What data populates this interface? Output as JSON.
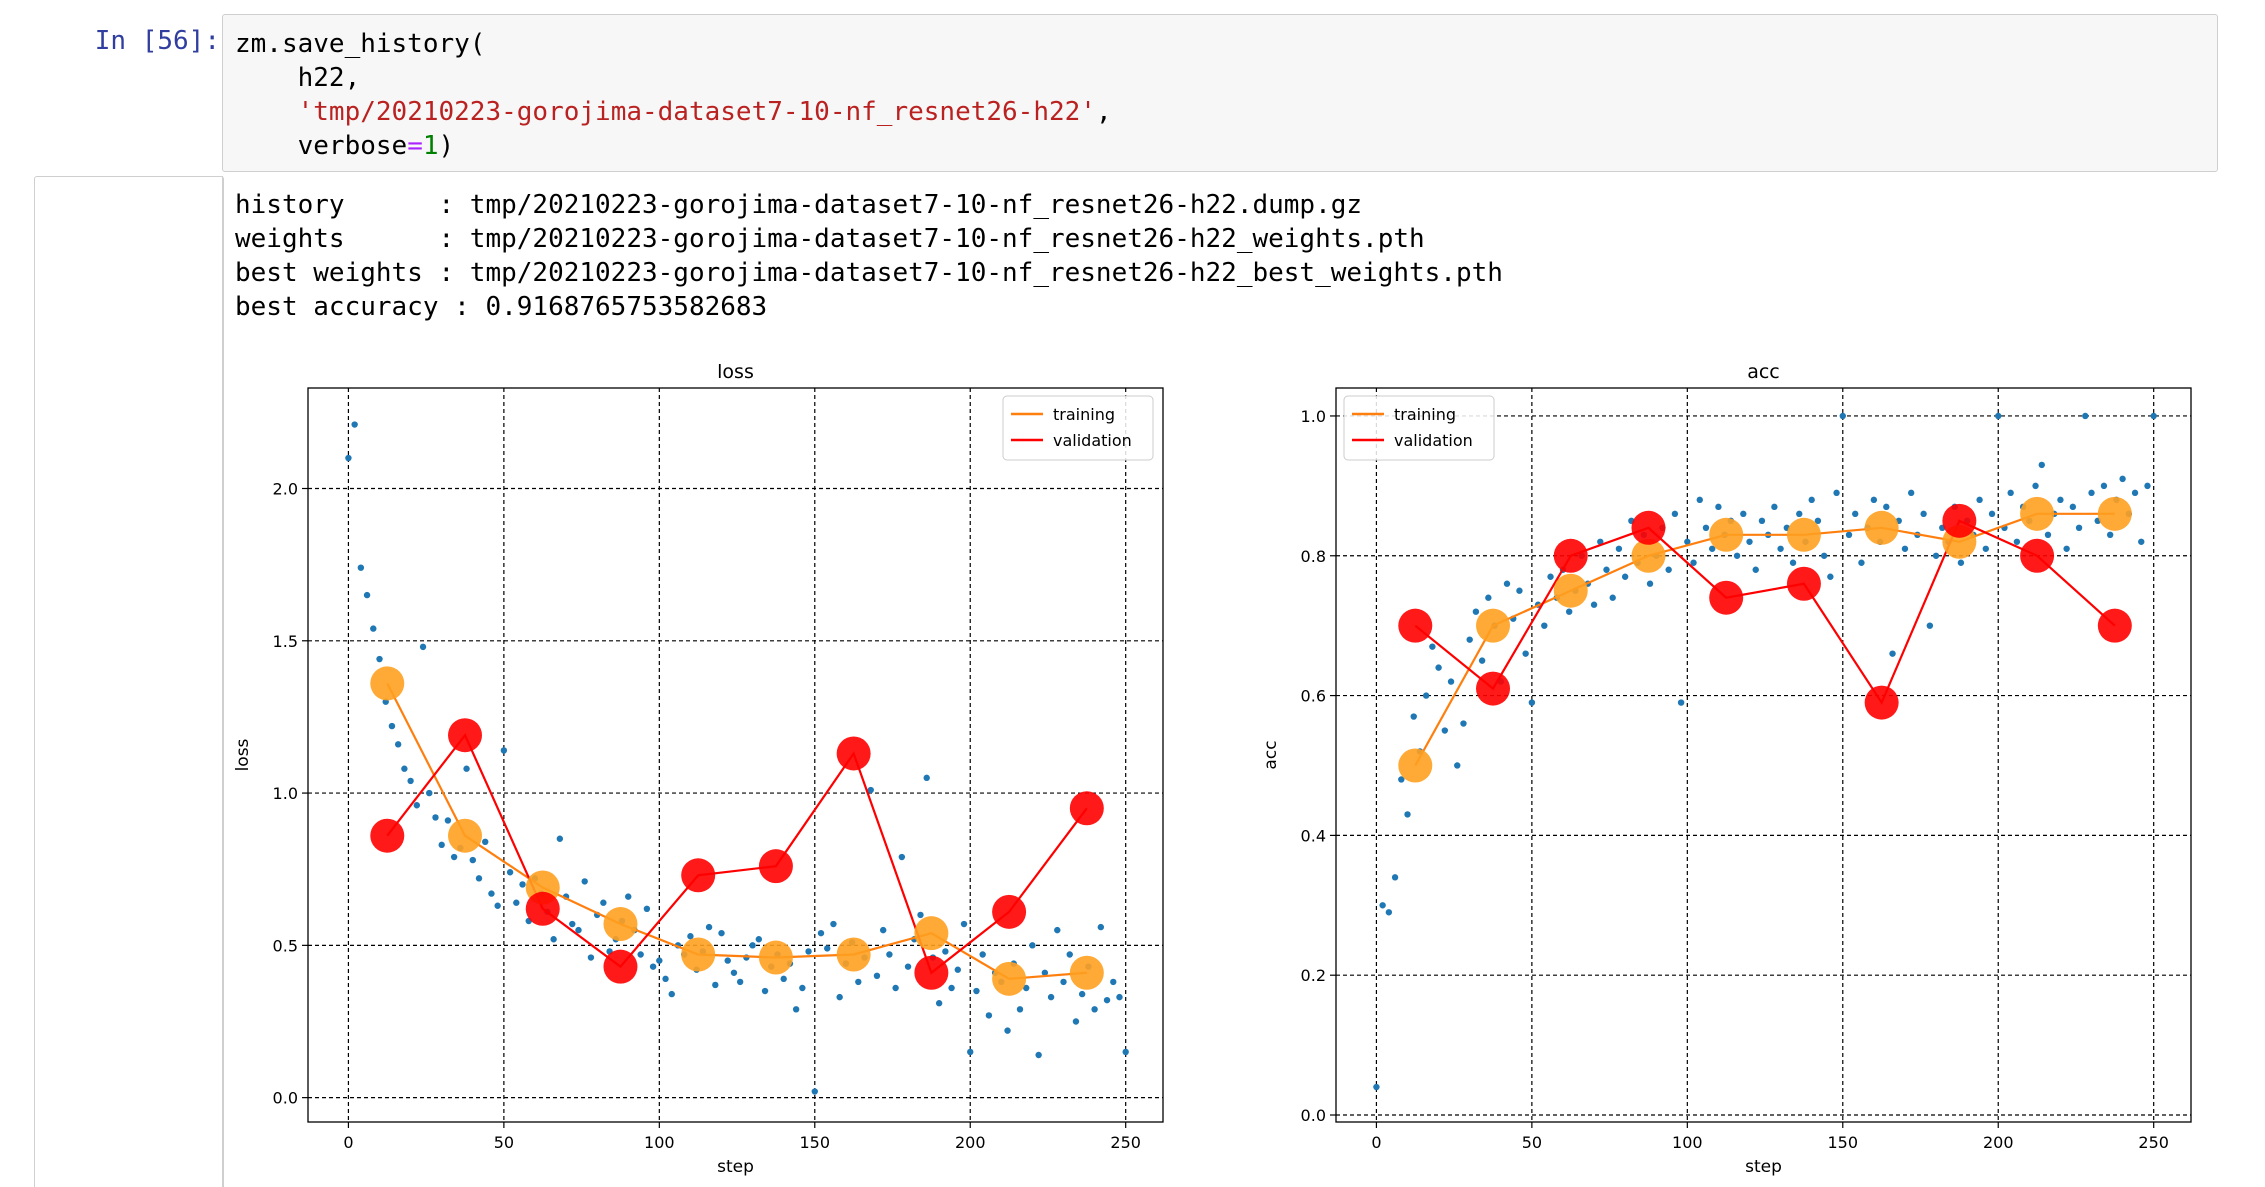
{
  "cell": {
    "prompt": "In [56]:",
    "code_lines": [
      {
        "pre": "zm.save_history(",
        "str": "",
        "op": "",
        "num": "",
        "post": ""
      },
      {
        "pre": "    h22,",
        "str": "",
        "op": "",
        "num": "",
        "post": ""
      },
      {
        "pre": "    ",
        "str": "'tmp/20210223-gorojima-dataset7-10-nf_resnet26-h22'",
        "op": "",
        "num": "",
        "post": ","
      },
      {
        "pre": "    verbose",
        "str": "",
        "op": "=",
        "num": "1",
        "post": ")"
      }
    ]
  },
  "output": {
    "lines": [
      "history      : tmp/20210223-gorojima-dataset7-10-nf_resnet26-h22.dump.gz",
      "weights      : tmp/20210223-gorojima-dataset7-10-nf_resnet26-h22_weights.pth",
      "best weights : tmp/20210223-gorojima-dataset7-10-nf_resnet26-h22_best_weights.pth",
      "best accuracy : 0.9168765753582683"
    ]
  },
  "colors": {
    "scatter": "#1f77b4",
    "training": "#ff7f0e",
    "training_marker": "#ffa020",
    "validation": "#ff0000",
    "grid": "#000000"
  },
  "chart_data": [
    {
      "type": "line",
      "title": "loss",
      "xlabel": "step",
      "ylabel": "loss",
      "xlim": [
        -13,
        262
      ],
      "ylim": [
        -0.08,
        2.33
      ],
      "xticks": [
        0,
        50,
        100,
        150,
        200,
        250
      ],
      "yticks": [
        0.0,
        0.5,
        1.0,
        1.5,
        2.0
      ],
      "ytick_format": 1,
      "legend_position": "upper right",
      "grid": true,
      "series": [
        {
          "name": "training",
          "x": [
            12.5,
            37.5,
            62.5,
            87.5,
            112.5,
            137.5,
            162.5,
            187.5,
            212.5,
            237.5
          ],
          "values": [
            1.36,
            0.86,
            0.69,
            0.57,
            0.47,
            0.46,
            0.47,
            0.54,
            0.39,
            0.41
          ]
        },
        {
          "name": "validation",
          "x": [
            12.5,
            37.5,
            62.5,
            87.5,
            112.5,
            137.5,
            162.5,
            187.5,
            212.5,
            237.5
          ],
          "values": [
            0.86,
            1.19,
            0.62,
            0.43,
            0.73,
            0.76,
            1.13,
            0.41,
            0.61,
            0.95
          ]
        }
      ],
      "batch_scatter": {
        "x": [
          0,
          2,
          4,
          6,
          8,
          10,
          12,
          14,
          16,
          18,
          20,
          22,
          24,
          26,
          28,
          30,
          32,
          34,
          36,
          38,
          40,
          42,
          44,
          46,
          48,
          50,
          52,
          54,
          56,
          58,
          60,
          62,
          64,
          66,
          68,
          70,
          72,
          74,
          76,
          78,
          80,
          82,
          84,
          86,
          88,
          90,
          92,
          94,
          96,
          98,
          100,
          102,
          104,
          106,
          108,
          110,
          112,
          114,
          116,
          118,
          120,
          122,
          124,
          126,
          128,
          130,
          132,
          134,
          136,
          138,
          140,
          142,
          144,
          146,
          148,
          150,
          152,
          154,
          156,
          158,
          160,
          162,
          164,
          166,
          168,
          170,
          172,
          174,
          176,
          178,
          180,
          182,
          184,
          186,
          188,
          190,
          192,
          194,
          196,
          198,
          200,
          202,
          204,
          206,
          208,
          210,
          212,
          214,
          216,
          218,
          220,
          222,
          224,
          226,
          228,
          230,
          232,
          234,
          236,
          238,
          240,
          242,
          244,
          246,
          248,
          250
        ],
        "y": [
          2.1,
          2.21,
          1.74,
          1.65,
          1.54,
          1.44,
          1.3,
          1.22,
          1.16,
          1.08,
          1.04,
          0.96,
          1.48,
          1.0,
          0.92,
          0.83,
          0.91,
          0.79,
          0.82,
          1.08,
          0.78,
          0.72,
          0.84,
          0.67,
          0.63,
          1.14,
          0.74,
          0.64,
          0.7,
          0.58,
          0.72,
          0.67,
          0.61,
          0.52,
          0.85,
          0.66,
          0.57,
          0.55,
          0.71,
          0.46,
          0.6,
          0.64,
          0.48,
          0.52,
          0.58,
          0.66,
          0.55,
          0.47,
          0.62,
          0.43,
          0.45,
          0.39,
          0.34,
          0.5,
          0.47,
          0.53,
          0.42,
          0.48,
          0.56,
          0.37,
          0.54,
          0.45,
          0.41,
          0.38,
          0.46,
          0.5,
          0.52,
          0.35,
          0.43,
          0.47,
          0.39,
          0.44,
          0.29,
          0.36,
          0.48,
          0.02,
          0.54,
          0.49,
          0.57,
          0.33,
          0.44,
          0.51,
          0.38,
          0.46,
          1.01,
          0.4,
          0.55,
          0.47,
          0.36,
          0.79,
          0.43,
          0.52,
          0.6,
          1.05,
          0.46,
          0.31,
          0.48,
          0.36,
          0.42,
          0.57,
          0.15,
          0.35,
          0.47,
          0.27,
          0.41,
          0.38,
          0.22,
          0.44,
          0.29,
          0.36,
          0.5,
          0.14,
          0.41,
          0.33,
          0.55,
          0.38,
          0.47,
          0.25,
          0.34,
          0.43,
          0.29,
          0.56,
          0.32,
          0.38,
          0.33,
          0.15
        ]
      }
    },
    {
      "type": "line",
      "title": "acc",
      "xlabel": "step",
      "ylabel": "acc",
      "xlim": [
        -13,
        262
      ],
      "ylim": [
        -0.01,
        1.04
      ],
      "xticks": [
        0,
        50,
        100,
        150,
        200,
        250
      ],
      "yticks": [
        0.0,
        0.2,
        0.4,
        0.6,
        0.8,
        1.0
      ],
      "ytick_format": 1,
      "legend_position": "upper left",
      "grid": true,
      "series": [
        {
          "name": "training",
          "x": [
            12.5,
            37.5,
            62.5,
            87.5,
            112.5,
            137.5,
            162.5,
            187.5,
            212.5,
            237.5
          ],
          "values": [
            0.5,
            0.7,
            0.75,
            0.8,
            0.83,
            0.83,
            0.84,
            0.82,
            0.86,
            0.86
          ]
        },
        {
          "name": "validation",
          "x": [
            12.5,
            37.5,
            62.5,
            87.5,
            112.5,
            137.5,
            162.5,
            187.5,
            212.5,
            237.5
          ],
          "values": [
            0.7,
            0.61,
            0.8,
            0.84,
            0.74,
            0.76,
            0.59,
            0.85,
            0.8,
            0.7
          ]
        }
      ],
      "batch_scatter": {
        "x": [
          0,
          2,
          4,
          6,
          8,
          10,
          12,
          14,
          16,
          18,
          20,
          22,
          24,
          26,
          28,
          30,
          32,
          34,
          36,
          38,
          40,
          42,
          44,
          46,
          48,
          50,
          52,
          54,
          56,
          58,
          60,
          62,
          64,
          66,
          68,
          70,
          72,
          74,
          76,
          78,
          80,
          82,
          84,
          86,
          88,
          90,
          92,
          94,
          96,
          98,
          100,
          102,
          104,
          106,
          108,
          110,
          112,
          114,
          116,
          118,
          120,
          122,
          124,
          126,
          128,
          130,
          132,
          134,
          136,
          138,
          140,
          142,
          144,
          146,
          148,
          150,
          152,
          154,
          156,
          158,
          160,
          162,
          164,
          166,
          168,
          170,
          172,
          174,
          176,
          178,
          180,
          182,
          184,
          186,
          188,
          190,
          192,
          194,
          196,
          198,
          200,
          202,
          204,
          206,
          208,
          210,
          212,
          214,
          216,
          218,
          220,
          222,
          224,
          226,
          228,
          230,
          232,
          234,
          236,
          238,
          240,
          242,
          244,
          246,
          248,
          250
        ],
        "y": [
          0.04,
          0.3,
          0.29,
          0.34,
          0.48,
          0.43,
          0.57,
          0.52,
          0.6,
          0.67,
          0.64,
          0.55,
          0.62,
          0.5,
          0.56,
          0.68,
          0.72,
          0.65,
          0.74,
          0.7,
          0.62,
          0.76,
          0.71,
          0.75,
          0.66,
          0.59,
          0.73,
          0.7,
          0.77,
          0.74,
          0.78,
          0.72,
          0.75,
          0.8,
          0.76,
          0.73,
          0.82,
          0.78,
          0.74,
          0.81,
          0.77,
          0.85,
          0.79,
          0.83,
          0.76,
          0.8,
          0.84,
          0.78,
          0.86,
          0.59,
          0.82,
          0.79,
          0.88,
          0.84,
          0.81,
          0.87,
          0.83,
          0.85,
          0.8,
          0.86,
          0.82,
          0.78,
          0.85,
          0.83,
          0.87,
          0.81,
          0.84,
          0.79,
          0.86,
          0.82,
          0.88,
          0.85,
          0.8,
          0.77,
          0.89,
          1.0,
          0.83,
          0.86,
          0.79,
          0.84,
          0.88,
          0.82,
          0.87,
          0.66,
          0.85,
          0.81,
          0.89,
          0.83,
          0.86,
          0.7,
          0.8,
          0.84,
          0.82,
          0.87,
          0.79,
          0.85,
          0.83,
          0.88,
          0.81,
          0.86,
          1.0,
          0.84,
          0.89,
          0.82,
          0.87,
          0.85,
          0.9,
          0.93,
          0.83,
          0.86,
          0.88,
          0.81,
          0.87,
          0.84,
          1.0,
          0.89,
          0.85,
          0.9,
          0.83,
          0.88,
          0.91,
          0.86,
          0.89,
          0.82,
          0.9,
          1.0
        ]
      }
    }
  ]
}
